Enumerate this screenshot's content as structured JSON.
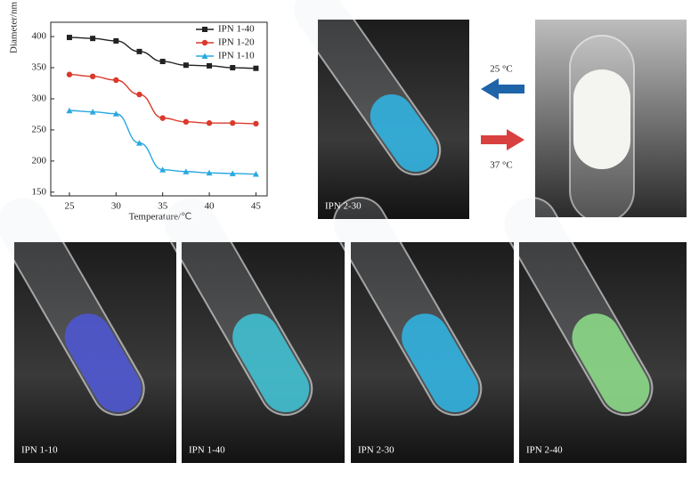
{
  "chart_data": {
    "type": "line",
    "x_label": "Temperature/℃",
    "y_label": "Diameter/nm",
    "x": [
      25,
      27.5,
      30,
      32.5,
      35,
      37.5,
      40,
      42.5,
      45
    ],
    "series": [
      {
        "name": "IPN 1-40",
        "color": "#222222",
        "marker": "square",
        "values": [
          398.6,
          397,
          393,
          376,
          360,
          354,
          353,
          350,
          349
        ]
      },
      {
        "name": "IPN 1-20",
        "color": "#d93a2b",
        "marker": "circle",
        "values": [
          339,
          336,
          330,
          307,
          269,
          263,
          261,
          261,
          260
        ]
      },
      {
        "name": "IPN 1-10",
        "color": "#29a8e0",
        "marker": "triangle",
        "values": [
          281,
          279,
          276,
          229,
          186,
          183,
          181,
          180,
          179
        ]
      }
    ],
    "xlim": [
      23,
      46.2
    ],
    "ylim": [
      144,
      423
    ],
    "xticks": [
      25,
      30,
      35,
      40,
      45
    ],
    "yticks": [
      150,
      200,
      250,
      300,
      350,
      400
    ],
    "legend": "upper right"
  },
  "arrows": {
    "cool": "25 °C",
    "heat": "37 °C"
  },
  "photos": {
    "top": "IPN 2-30",
    "bottom": [
      "IPN 1-10",
      "IPN 1-40",
      "IPN 2-30",
      "IPN 2-40"
    ]
  }
}
